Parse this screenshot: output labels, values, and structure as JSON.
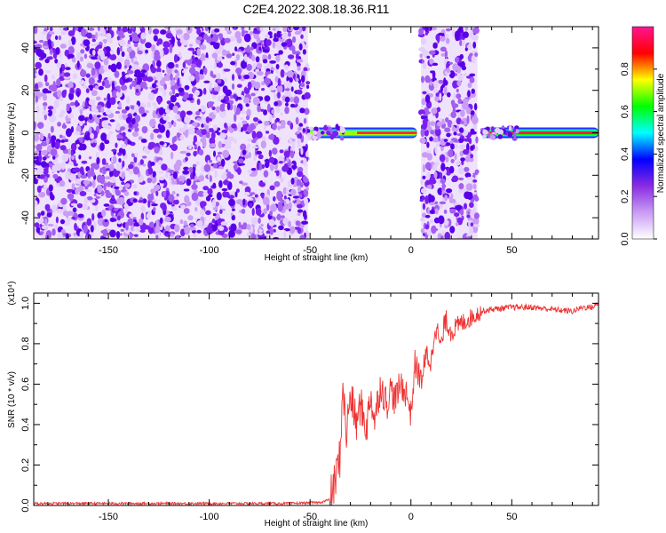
{
  "title": "C2E4.2022.308.18.36.R11",
  "chart_data": [
    {
      "type": "heatmap",
      "xlabel": "Height of straight line (km)",
      "ylabel": "Frequency (Hz)",
      "xlim": [
        -187,
        93
      ],
      "ylim": [
        -50,
        50
      ],
      "x_ticks": [
        -150,
        -100,
        -50,
        0,
        50
      ],
      "y_ticks": [
        -40,
        -20,
        0,
        20,
        40
      ],
      "colorbar": {
        "label": "Normalized spectral amplitude",
        "range": [
          0,
          1
        ],
        "ticks": [
          0.0,
          0.2,
          0.4,
          0.6,
          0.8
        ],
        "colors": [
          "#ffffff",
          "#c99cf5",
          "#8a2be2",
          "#0000ff",
          "#00ffff",
          "#00ff00",
          "#ffff00",
          "#ff0000",
          "#ff1493"
        ]
      },
      "regions": [
        {
          "x_start": -187,
          "x_end": -51,
          "kind": "broadband noise",
          "level": 0.2
        },
        {
          "x_start": -51,
          "x_end": 3,
          "kind": "narrow line near 0 Hz",
          "level": 0.7
        },
        {
          "x_start": 5,
          "x_end": 33,
          "kind": "broadband noise",
          "level": 0.2
        },
        {
          "x_start": 35,
          "x_end": 93,
          "kind": "narrow line near 0 Hz",
          "level": 0.95
        }
      ]
    },
    {
      "type": "line",
      "xlabel": "Height of straight line (km)",
      "ylabel": "SNR (10 * v/v)",
      "yscale_label": "(x10⁴)",
      "xlim": [
        -187,
        93
      ],
      "ylim": [
        0,
        1.05
      ],
      "x_ticks": [
        -150,
        -100,
        -50,
        0,
        50
      ],
      "y_ticks": [
        "0.0",
        "0.2",
        "0.4",
        "0.6",
        "0.8",
        "1.0"
      ],
      "color": "#ee3333",
      "series": [
        {
          "x": [
            -187,
            -150,
            -100,
            -60,
            -45,
            -40,
            -38,
            -35,
            -34,
            -32,
            -30,
            -27,
            -25,
            -22,
            -20,
            -18,
            -15,
            -12,
            -10,
            -8,
            -5,
            -2,
            0,
            2,
            5,
            8,
            10,
            12,
            15,
            17,
            20,
            25,
            30,
            35,
            40,
            50,
            60,
            70,
            80,
            85,
            90,
            93
          ],
          "y": [
            0.01,
            0.01,
            0.01,
            0.01,
            0.015,
            0.03,
            0.1,
            0.25,
            0.6,
            0.35,
            0.55,
            0.4,
            0.5,
            0.38,
            0.55,
            0.42,
            0.6,
            0.5,
            0.58,
            0.52,
            0.6,
            0.55,
            0.45,
            0.7,
            0.62,
            0.75,
            0.7,
            0.9,
            0.78,
            0.92,
            0.86,
            0.9,
            0.93,
            0.96,
            0.97,
            0.98,
            0.98,
            0.97,
            0.96,
            0.98,
            0.98,
            1.0
          ]
        }
      ]
    }
  ]
}
